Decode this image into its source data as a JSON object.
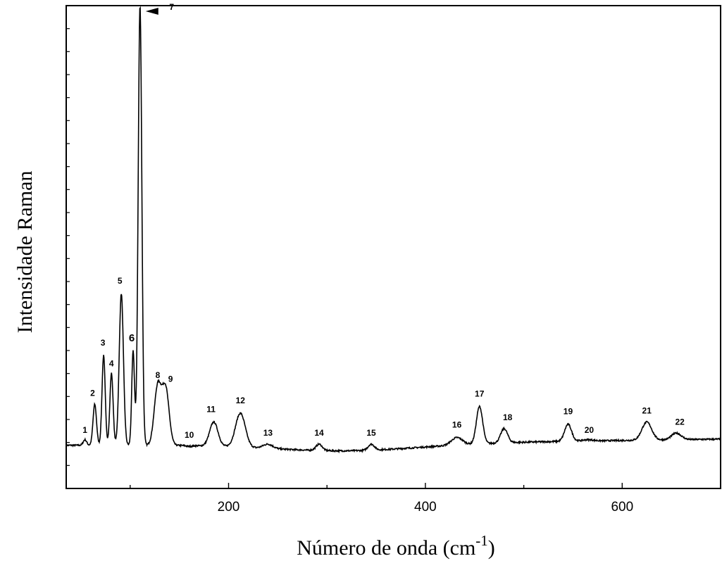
{
  "chart_data": {
    "type": "line",
    "title": "",
    "xlabel": "Número de onda (cm",
    "xlabel_sup": "-1",
    "xlabel_close": ")",
    "ylabel": "Intensidade Raman",
    "xlim": [
      35,
      700
    ],
    "ylim": [
      -0.09,
      1.0
    ],
    "x_ticks": [
      200,
      400,
      600
    ],
    "x_tick_labels": [
      "200",
      "400",
      "600"
    ],
    "y_tick_labels_shown": false,
    "grid": false,
    "legend": "none",
    "line_color": "#000000",
    "peaks": [
      {
        "label": "1",
        "x": 54,
        "y": 0.02
      },
      {
        "label": "2",
        "x": 64,
        "y": 0.1
      },
      {
        "label": "3",
        "x": 73,
        "y": 0.21
      },
      {
        "label": "4",
        "x": 81,
        "y": 0.17
      },
      {
        "label": "5",
        "x": 91,
        "y": 0.35
      },
      {
        "label": "6",
        "x": 103,
        "y": 0.22
      },
      {
        "label": "7",
        "x": 110,
        "y": 1.0
      },
      {
        "label": "8",
        "x": 128,
        "y": 0.14
      },
      {
        "label": "9",
        "x": 136,
        "y": 0.135
      },
      {
        "label": "10",
        "x": 160,
        "y": 0.005
      },
      {
        "label": "11",
        "x": 185,
        "y": 0.06
      },
      {
        "label": "12",
        "x": 212,
        "y": 0.08
      },
      {
        "label": "13",
        "x": 240,
        "y": 0.01
      },
      {
        "label": "14",
        "x": 292,
        "y": 0.01
      },
      {
        "label": "15",
        "x": 345,
        "y": 0.01
      },
      {
        "label": "16",
        "x": 432,
        "y": 0.025
      },
      {
        "label": "17",
        "x": 455,
        "y": 0.095
      },
      {
        "label": "18",
        "x": 480,
        "y": 0.045
      },
      {
        "label": "19",
        "x": 545,
        "y": 0.055
      },
      {
        "label": "20",
        "x": 565,
        "y": 0.02
      },
      {
        "label": "21",
        "x": 625,
        "y": 0.06
      },
      {
        "label": "22",
        "x": 655,
        "y": 0.035
      }
    ]
  }
}
